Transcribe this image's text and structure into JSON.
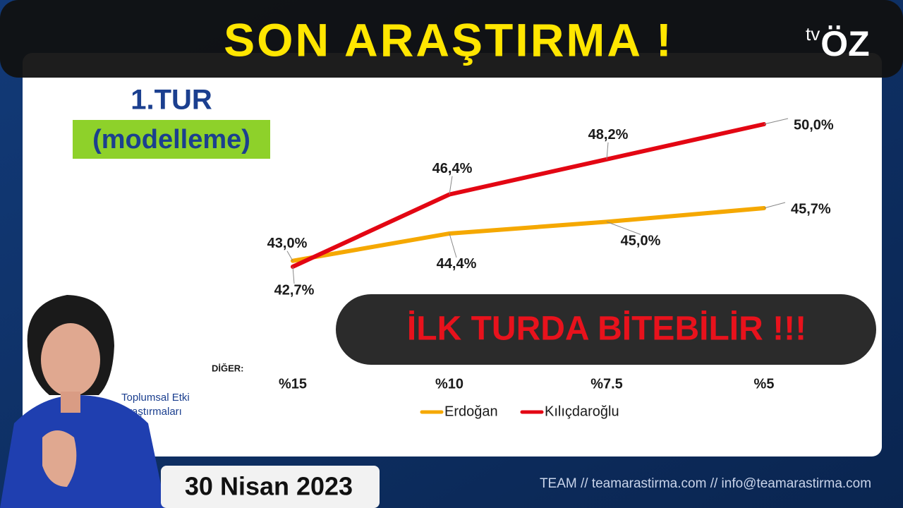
{
  "banner_title": "SON ARAŞTIRMA !",
  "logo": {
    "tv": "tv",
    "brand": "ÖZ"
  },
  "chart_data": {
    "type": "line",
    "title": "1.TUR",
    "subtitle": "(modelleme)",
    "xlabel": "DİĞER:",
    "categories": [
      "%15",
      "%10",
      "%7.5",
      "%5"
    ],
    "series": [
      {
        "name": "Erdoğan",
        "color": "#f5a800",
        "values": [
          43.0,
          44.4,
          45.0,
          45.7
        ],
        "value_labels": [
          "43,0%",
          "44,4%",
          "45,0%",
          "45,7%"
        ]
      },
      {
        "name": "Kılıçdaroğlu",
        "color": "#e30613",
        "values": [
          42.7,
          46.4,
          48.2,
          50.0
        ],
        "value_labels": [
          "42,7%",
          "46,4%",
          "48,2%",
          "50,0%"
        ]
      }
    ]
  },
  "callout": "İLK TURDA BİTEBİLİR !!!",
  "source": {
    "line1": "Toplumsal Etki",
    "line2": "Araştırmaları",
    "footer": "TEAM // teamarastirma.com // info@teamarastirma.com"
  },
  "date": "30 Nisan 2023"
}
